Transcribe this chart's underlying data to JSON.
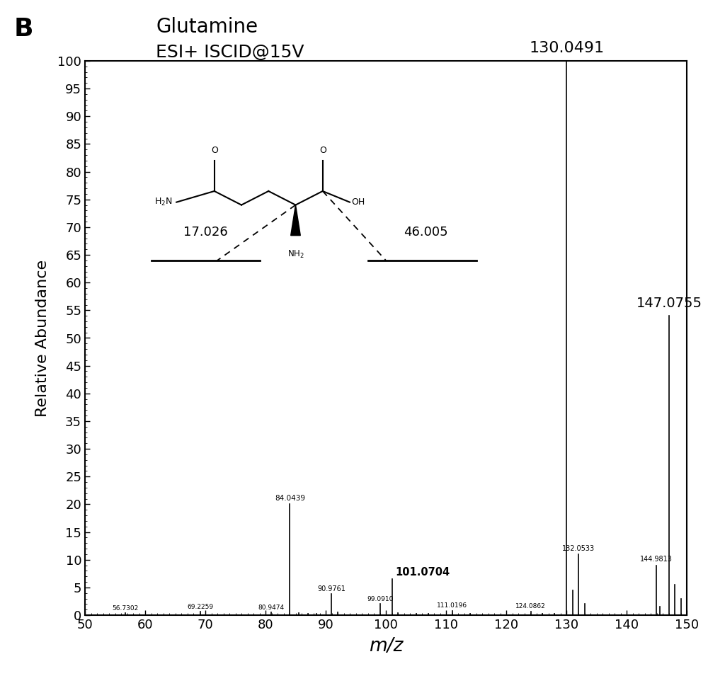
{
  "title_line1": "Glutamine",
  "title_line2": "ESI+ ISCID@15V",
  "panel_label": "B",
  "xlabel": "m/z",
  "ylabel": "Relative Abundance",
  "xlim": [
    50,
    150
  ],
  "ylim": [
    0,
    100
  ],
  "xticks": [
    50,
    60,
    70,
    80,
    90,
    100,
    110,
    120,
    130,
    140,
    150
  ],
  "yticks": [
    0,
    5,
    10,
    15,
    20,
    25,
    30,
    35,
    40,
    45,
    50,
    55,
    60,
    65,
    70,
    75,
    80,
    85,
    90,
    95,
    100
  ],
  "peaks": [
    {
      "mz": 56.7302,
      "intensity": 0.4,
      "label": "56.7302",
      "label_size": 6.5,
      "bold": false
    },
    {
      "mz": 69.2259,
      "intensity": 0.6,
      "label": "69.2259",
      "label_size": 6.5,
      "bold": false
    },
    {
      "mz": 80.9474,
      "intensity": 0.5,
      "label": "80.9474",
      "label_size": 6.5,
      "bold": false
    },
    {
      "mz": 84.0439,
      "intensity": 20.0,
      "label": "84.0439",
      "label_size": 7.5,
      "bold": false
    },
    {
      "mz": 85.5,
      "intensity": 0.4,
      "label": "",
      "label_size": 6,
      "bold": false
    },
    {
      "mz": 87.0,
      "intensity": 0.3,
      "label": "",
      "label_size": 6,
      "bold": false
    },
    {
      "mz": 88.5,
      "intensity": 0.3,
      "label": "",
      "label_size": 6,
      "bold": false
    },
    {
      "mz": 90.9761,
      "intensity": 3.8,
      "label": "90.9761",
      "label_size": 7.0,
      "bold": false
    },
    {
      "mz": 92.0,
      "intensity": 0.5,
      "label": "",
      "label_size": 6,
      "bold": false
    },
    {
      "mz": 99.091,
      "intensity": 2.0,
      "label": "99.0910",
      "label_size": 6.5,
      "bold": false
    },
    {
      "mz": 101.0704,
      "intensity": 6.5,
      "label": "101.0704",
      "label_size": 10.5,
      "bold": true
    },
    {
      "mz": 102.0,
      "intensity": 0.4,
      "label": "",
      "label_size": 6,
      "bold": false
    },
    {
      "mz": 105.0,
      "intensity": 0.3,
      "label": "",
      "label_size": 6,
      "bold": false
    },
    {
      "mz": 107.0,
      "intensity": 0.3,
      "label": "",
      "label_size": 6,
      "bold": false
    },
    {
      "mz": 111.0196,
      "intensity": 0.8,
      "label": "111.0196",
      "label_size": 6.5,
      "bold": false
    },
    {
      "mz": 114.0,
      "intensity": 0.3,
      "label": "",
      "label_size": 6,
      "bold": false
    },
    {
      "mz": 124.0862,
      "intensity": 0.7,
      "label": "124.0862",
      "label_size": 6.5,
      "bold": false
    },
    {
      "mz": 126.0,
      "intensity": 0.3,
      "label": "",
      "label_size": 6,
      "bold": false
    },
    {
      "mz": 128.0,
      "intensity": 0.3,
      "label": "",
      "label_size": 6,
      "bold": false
    },
    {
      "mz": 130.0491,
      "intensity": 100.0,
      "label": "130.0491",
      "label_size": 16,
      "bold": false
    },
    {
      "mz": 131.0,
      "intensity": 4.5,
      "label": "",
      "label_size": 6,
      "bold": false
    },
    {
      "mz": 132.0533,
      "intensity": 11.0,
      "label": "132.0533",
      "label_size": 7.0,
      "bold": false
    },
    {
      "mz": 133.0,
      "intensity": 2.0,
      "label": "",
      "label_size": 6,
      "bold": false
    },
    {
      "mz": 144.9813,
      "intensity": 9.0,
      "label": "144.9813",
      "label_size": 7.0,
      "bold": false
    },
    {
      "mz": 145.5,
      "intensity": 1.5,
      "label": "",
      "label_size": 6,
      "bold": false
    },
    {
      "mz": 147.0755,
      "intensity": 54.0,
      "label": "147.0755",
      "label_size": 14,
      "bold": false
    },
    {
      "mz": 148.0,
      "intensity": 5.5,
      "label": "",
      "label_size": 6,
      "bold": false
    },
    {
      "mz": 149.0,
      "intensity": 3.0,
      "label": "",
      "label_size": 6,
      "bold": false
    },
    {
      "mz": 150.0,
      "intensity": 1.5,
      "label": "",
      "label_size": 6,
      "bold": false
    }
  ],
  "background_color": "#ffffff",
  "peak_color": "#000000",
  "fragment_label_17": "17.026",
  "fragment_label_46": "46.005",
  "title_fontsize": 20,
  "axis_label_fontsize": 16,
  "tick_fontsize": 13
}
